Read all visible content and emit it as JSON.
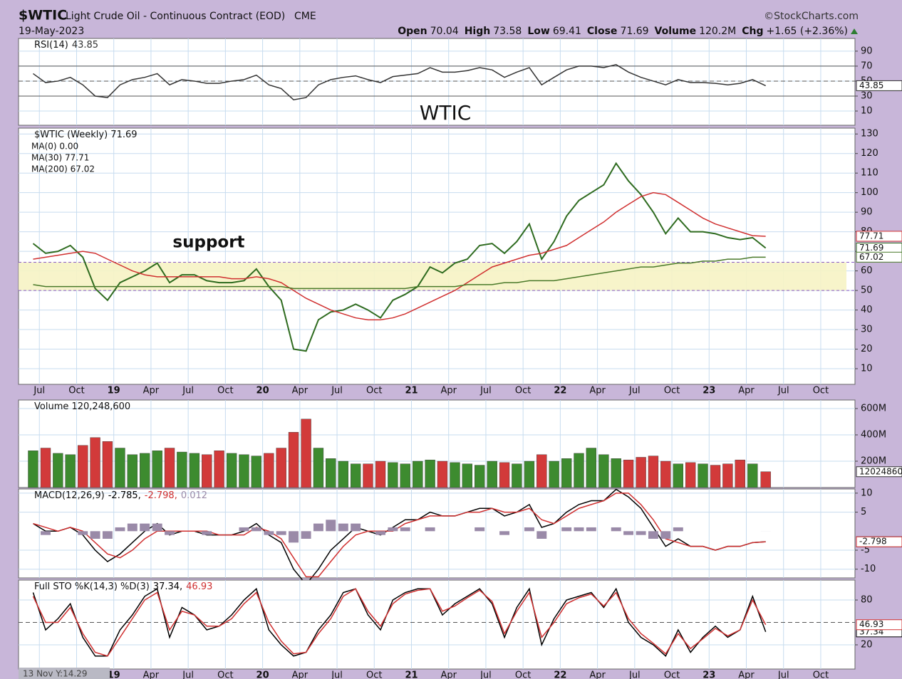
{
  "header": {
    "symbol": "$WTIC",
    "name": "Light Crude Oil - Continuous Contract (EOD)",
    "exchange": "CME",
    "brand": "©StockCharts.com",
    "date": "19-May-2023",
    "quote": [
      {
        "label": "Open",
        "value": "70.04"
      },
      {
        "label": "High",
        "value": "73.58"
      },
      {
        "label": "Low",
        "value": "69.41"
      },
      {
        "label": "Close",
        "value": "71.69"
      },
      {
        "label": "Volume",
        "value": "120.2M"
      },
      {
        "label": "Chg",
        "value": "+1.65 (+2.36%)"
      }
    ],
    "cursor_readout": "13 Nov Y:14.29"
  },
  "chart_data": [
    {
      "type": "line",
      "title": "RSI(14)",
      "annotation": "WTIC",
      "series": [
        {
          "name": "43.85",
          "color": "#333333",
          "values": [
            60,
            48,
            50,
            55,
            45,
            30,
            28,
            45,
            52,
            55,
            60,
            45,
            52,
            50,
            47,
            47,
            50,
            52,
            58,
            45,
            40,
            25,
            28,
            45,
            52,
            55,
            57,
            52,
            48,
            56,
            58,
            60,
            68,
            62,
            62,
            64,
            68,
            65,
            55,
            62,
            68,
            45,
            55,
            65,
            70,
            70,
            68,
            72,
            62,
            55,
            50,
            45,
            52,
            48,
            48,
            47,
            45,
            47,
            52,
            43.85
          ]
        }
      ],
      "ylim": [
        -9,
        107
      ],
      "yticks": [
        10,
        30,
        50,
        70,
        90
      ],
      "ref_lines": [
        30,
        70
      ],
      "mid_line": 50
    },
    {
      "type": "line",
      "title": "$WTIC (Weekly) 71.69",
      "ma0_label": "MA(0) 0.00",
      "annotation": "support",
      "x": [
        2018.458,
        2018.542,
        2018.625,
        2018.708,
        2018.792,
        2018.875,
        2018.958,
        2019.042,
        2019.125,
        2019.208,
        2019.292,
        2019.375,
        2019.458,
        2019.542,
        2019.625,
        2019.708,
        2019.792,
        2019.875,
        2019.958,
        2020.042,
        2020.125,
        2020.208,
        2020.292,
        2020.375,
        2020.458,
        2020.542,
        2020.625,
        2020.708,
        2020.792,
        2020.875,
        2020.958,
        2021.042,
        2021.125,
        2021.208,
        2021.292,
        2021.375,
        2021.458,
        2021.542,
        2021.625,
        2021.708,
        2021.792,
        2021.875,
        2021.958,
        2022.042,
        2022.125,
        2022.208,
        2022.292,
        2022.375,
        2022.458,
        2022.542,
        2022.625,
        2022.708,
        2022.792,
        2022.875,
        2022.958,
        2023.042,
        2023.125,
        2023.208,
        2023.292,
        2023.38
      ],
      "series": [
        {
          "name": "$WTIC",
          "color": "#2e6b1f",
          "values": [
            74,
            69,
            70,
            73,
            67,
            51,
            45,
            54,
            57,
            60,
            64,
            54,
            58,
            58,
            55,
            54,
            54,
            55,
            61,
            52,
            45,
            20,
            19,
            35,
            39,
            40,
            43,
            40,
            36,
            45,
            48,
            52,
            62,
            59,
            64,
            66,
            73,
            74,
            69,
            75,
            84,
            66,
            75,
            88,
            96,
            100,
            104,
            115,
            106,
            99,
            90,
            79,
            87,
            80,
            80,
            79,
            77,
            76,
            77,
            71.69
          ]
        },
        {
          "name": "MA(30) 77.71",
          "color": "#d03030",
          "values": [
            66,
            67,
            68,
            69,
            70,
            69,
            66,
            63,
            60,
            58,
            57,
            57,
            57,
            57,
            57,
            57,
            56,
            56,
            57,
            56,
            54,
            50,
            46,
            43,
            40,
            38,
            36,
            35,
            35,
            36,
            38,
            41,
            44,
            47,
            50,
            54,
            58,
            62,
            64,
            66,
            68,
            69,
            71,
            73,
            77,
            81,
            85,
            90,
            94,
            98,
            100,
            99,
            95,
            91,
            87,
            84,
            82,
            80,
            78,
            77.71
          ]
        },
        {
          "name": "MA(200) 67.02",
          "color": "#4a7a2a",
          "values": [
            53,
            52,
            52,
            52,
            52,
            52,
            52,
            52,
            52,
            52,
            52,
            52,
            52,
            52,
            52,
            52,
            52,
            52,
            52,
            52,
            52,
            51,
            51,
            51,
            51,
            51,
            51,
            51,
            51,
            51,
            51,
            52,
            52,
            52,
            52,
            53,
            53,
            53,
            54,
            54,
            55,
            55,
            55,
            56,
            57,
            58,
            59,
            60,
            61,
            62,
            62,
            63,
            64,
            64,
            65,
            65,
            66,
            66,
            67,
            67.02
          ]
        }
      ],
      "support_band": [
        50,
        64.4
      ],
      "xlim": [
        2018.36,
        2023.98
      ],
      "ylim": [
        2,
        133
      ],
      "yticks": [
        10,
        20,
        30,
        40,
        50,
        60,
        70,
        80,
        90,
        100,
        110,
        120,
        130
      ],
      "xticks": [
        {
          "value": 2018.5,
          "label": "Jul"
        },
        {
          "value": 2018.75,
          "label": "Oct"
        },
        {
          "value": 2019,
          "label": "19"
        },
        {
          "value": 2019.25,
          "label": "Apr"
        },
        {
          "value": 2019.5,
          "label": "Jul"
        },
        {
          "value": 2019.75,
          "label": "Oct"
        },
        {
          "value": 2020,
          "label": "20"
        },
        {
          "value": 2020.25,
          "label": "Apr"
        },
        {
          "value": 2020.5,
          "label": "Jul"
        },
        {
          "value": 2020.75,
          "label": "Oct"
        },
        {
          "value": 2021,
          "label": "21"
        },
        {
          "value": 2021.25,
          "label": "Apr"
        },
        {
          "value": 2021.5,
          "label": "Jul"
        },
        {
          "value": 2021.75,
          "label": "Oct"
        },
        {
          "value": 2022,
          "label": "22"
        },
        {
          "value": 2022.25,
          "label": "Apr"
        },
        {
          "value": 2022.5,
          "label": "Jul"
        },
        {
          "value": 2022.75,
          "label": "Oct"
        },
        {
          "value": 2023,
          "label": "23"
        },
        {
          "value": 2023.25,
          "label": "Apr"
        },
        {
          "value": 2023.5,
          "label": "Jul"
        },
        {
          "value": 2023.75,
          "label": "Oct"
        }
      ]
    },
    {
      "type": "bar",
      "title": "Volume 120,248,600",
      "series": [
        {
          "name": "Volume",
          "up_color": "#3d8b2f",
          "down_color": "#d23a3a",
          "values": [
            280000000,
            300000000,
            260000000,
            250000000,
            320000000,
            380000000,
            350000000,
            300000000,
            250000000,
            260000000,
            280000000,
            300000000,
            270000000,
            260000000,
            250000000,
            280000000,
            260000000,
            250000000,
            240000000,
            260000000,
            300000000,
            420000000,
            520000000,
            300000000,
            220000000,
            200000000,
            180000000,
            180000000,
            200000000,
            190000000,
            180000000,
            200000000,
            210000000,
            200000000,
            190000000,
            180000000,
            170000000,
            200000000,
            190000000,
            180000000,
            200000000,
            250000000,
            200000000,
            220000000,
            260000000,
            300000000,
            250000000,
            220000000,
            210000000,
            230000000,
            240000000,
            200000000,
            180000000,
            190000000,
            180000000,
            170000000,
            180000000,
            210000000,
            180000000,
            120248600
          ]
        }
      ],
      "ylim": [
        0,
        665000000
      ],
      "yticks": [
        {
          "value": 200000000,
          "label": "200M"
        },
        {
          "value": 400000000,
          "label": "400M"
        },
        {
          "value": 600000000,
          "label": "600M"
        }
      ]
    },
    {
      "type": "line",
      "title": "MACD(12,26,9)",
      "series": [
        {
          "name": "-2.785,",
          "color": "#000000",
          "values": [
            2,
            0,
            0,
            1,
            -1,
            -5,
            -8,
            -6,
            -3,
            0,
            2,
            -1,
            0,
            0,
            -1,
            -1,
            -1,
            0,
            2,
            -1,
            -3,
            -10,
            -14,
            -10,
            -5,
            -2,
            1,
            0,
            -1,
            1,
            3,
            3,
            5,
            4,
            4,
            5,
            6,
            6,
            4,
            5,
            7,
            1,
            2,
            5,
            7,
            8,
            8,
            11,
            9,
            6,
            1,
            -4,
            -2,
            -4,
            -4,
            -5,
            -4,
            -4,
            -3,
            -2.785
          ]
        },
        {
          "name": "-2.798,",
          "color": "#d03030",
          "values": [
            2,
            1,
            0,
            1,
            0,
            -3,
            -6,
            -7,
            -5,
            -2,
            0,
            0,
            0,
            0,
            0,
            -1,
            -1,
            -1,
            1,
            0,
            -2,
            -7,
            -12,
            -12,
            -8,
            -4,
            -1,
            0,
            0,
            0,
            2,
            3,
            4,
            4,
            4,
            5,
            5,
            6,
            5,
            5,
            6,
            3,
            2,
            4,
            6,
            7,
            8,
            10,
            10,
            7,
            3,
            -2,
            -3,
            -4,
            -4,
            -5,
            -4,
            -4,
            -3,
            -2.798
          ]
        },
        {
          "name": "0.012",
          "color": "#9a8aa8",
          "style": "histogram",
          "values": [
            0,
            -1,
            0,
            0,
            -1,
            -2,
            -2,
            1,
            2,
            2,
            2,
            -1,
            0,
            0,
            -1,
            0,
            0,
            1,
            1,
            -1,
            -1,
            -3,
            -2,
            2,
            3,
            2,
            2,
            0,
            -1,
            1,
            1,
            0,
            1,
            0,
            0,
            0,
            1,
            0,
            -1,
            0,
            1,
            -2,
            0,
            1,
            1,
            1,
            0,
            1,
            -1,
            -1,
            -2,
            -2,
            1,
            0,
            0,
            0,
            0,
            0,
            0,
            0.012
          ]
        }
      ],
      "ylim": [
        -12.3,
        11.1
      ],
      "yticks": [
        -10,
        -5,
        5,
        10
      ]
    },
    {
      "type": "line",
      "title": "Full STO %K(14,3) %D(3)",
      "series": [
        {
          "name": "37.34,",
          "color": "#000000",
          "values": [
            90,
            40,
            55,
            75,
            30,
            5,
            5,
            40,
            60,
            85,
            95,
            30,
            70,
            60,
            40,
            45,
            60,
            80,
            95,
            40,
            20,
            5,
            10,
            40,
            60,
            90,
            95,
            60,
            40,
            80,
            90,
            95,
            95,
            60,
            75,
            85,
            95,
            75,
            30,
            70,
            95,
            20,
            55,
            80,
            85,
            90,
            70,
            95,
            50,
            30,
            20,
            5,
            40,
            10,
            30,
            45,
            30,
            40,
            85,
            37.34
          ]
        },
        {
          "name": "46.93",
          "color": "#d03030",
          "values": [
            85,
            50,
            50,
            70,
            35,
            10,
            5,
            30,
            55,
            80,
            90,
            40,
            65,
            60,
            45,
            45,
            55,
            75,
            90,
            50,
            25,
            8,
            10,
            35,
            55,
            85,
            95,
            65,
            45,
            75,
            88,
            93,
            95,
            65,
            72,
            83,
            93,
            78,
            35,
            65,
            90,
            30,
            50,
            75,
            83,
            88,
            72,
            90,
            55,
            35,
            22,
            8,
            35,
            15,
            28,
            42,
            32,
            40,
            80,
            46.93
          ]
        }
      ],
      "ylim": [
        -12.4,
        106.7
      ],
      "yticks": [
        20,
        80
      ],
      "mid_line": 50,
      "xticks": [
        {
          "value": 2019,
          "label": "19"
        },
        {
          "value": 2019.25,
          "label": "Apr"
        },
        {
          "value": 2019.5,
          "label": "Jul"
        },
        {
          "value": 2019.75,
          "label": "Oct"
        },
        {
          "value": 2020,
          "label": "20"
        },
        {
          "value": 2020.25,
          "label": "Apr"
        },
        {
          "value": 2020.5,
          "label": "Jul"
        },
        {
          "value": 2020.75,
          "label": "Oct"
        },
        {
          "value": 2021,
          "label": "21"
        },
        {
          "value": 2021.25,
          "label": "Apr"
        },
        {
          "value": 2021.5,
          "label": "Jul"
        },
        {
          "value": 2021.75,
          "label": "Oct"
        },
        {
          "value": 2022,
          "label": "22"
        },
        {
          "value": 2022.25,
          "label": "Apr"
        },
        {
          "value": 2022.5,
          "label": "Jul"
        },
        {
          "value": 2022.75,
          "label": "Oct"
        },
        {
          "value": 2023,
          "label": "23"
        },
        {
          "value": 2023.25,
          "label": "Apr"
        },
        {
          "value": 2023.5,
          "label": "Jul"
        },
        {
          "value": 2023.75,
          "label": "Oct"
        }
      ]
    }
  ]
}
